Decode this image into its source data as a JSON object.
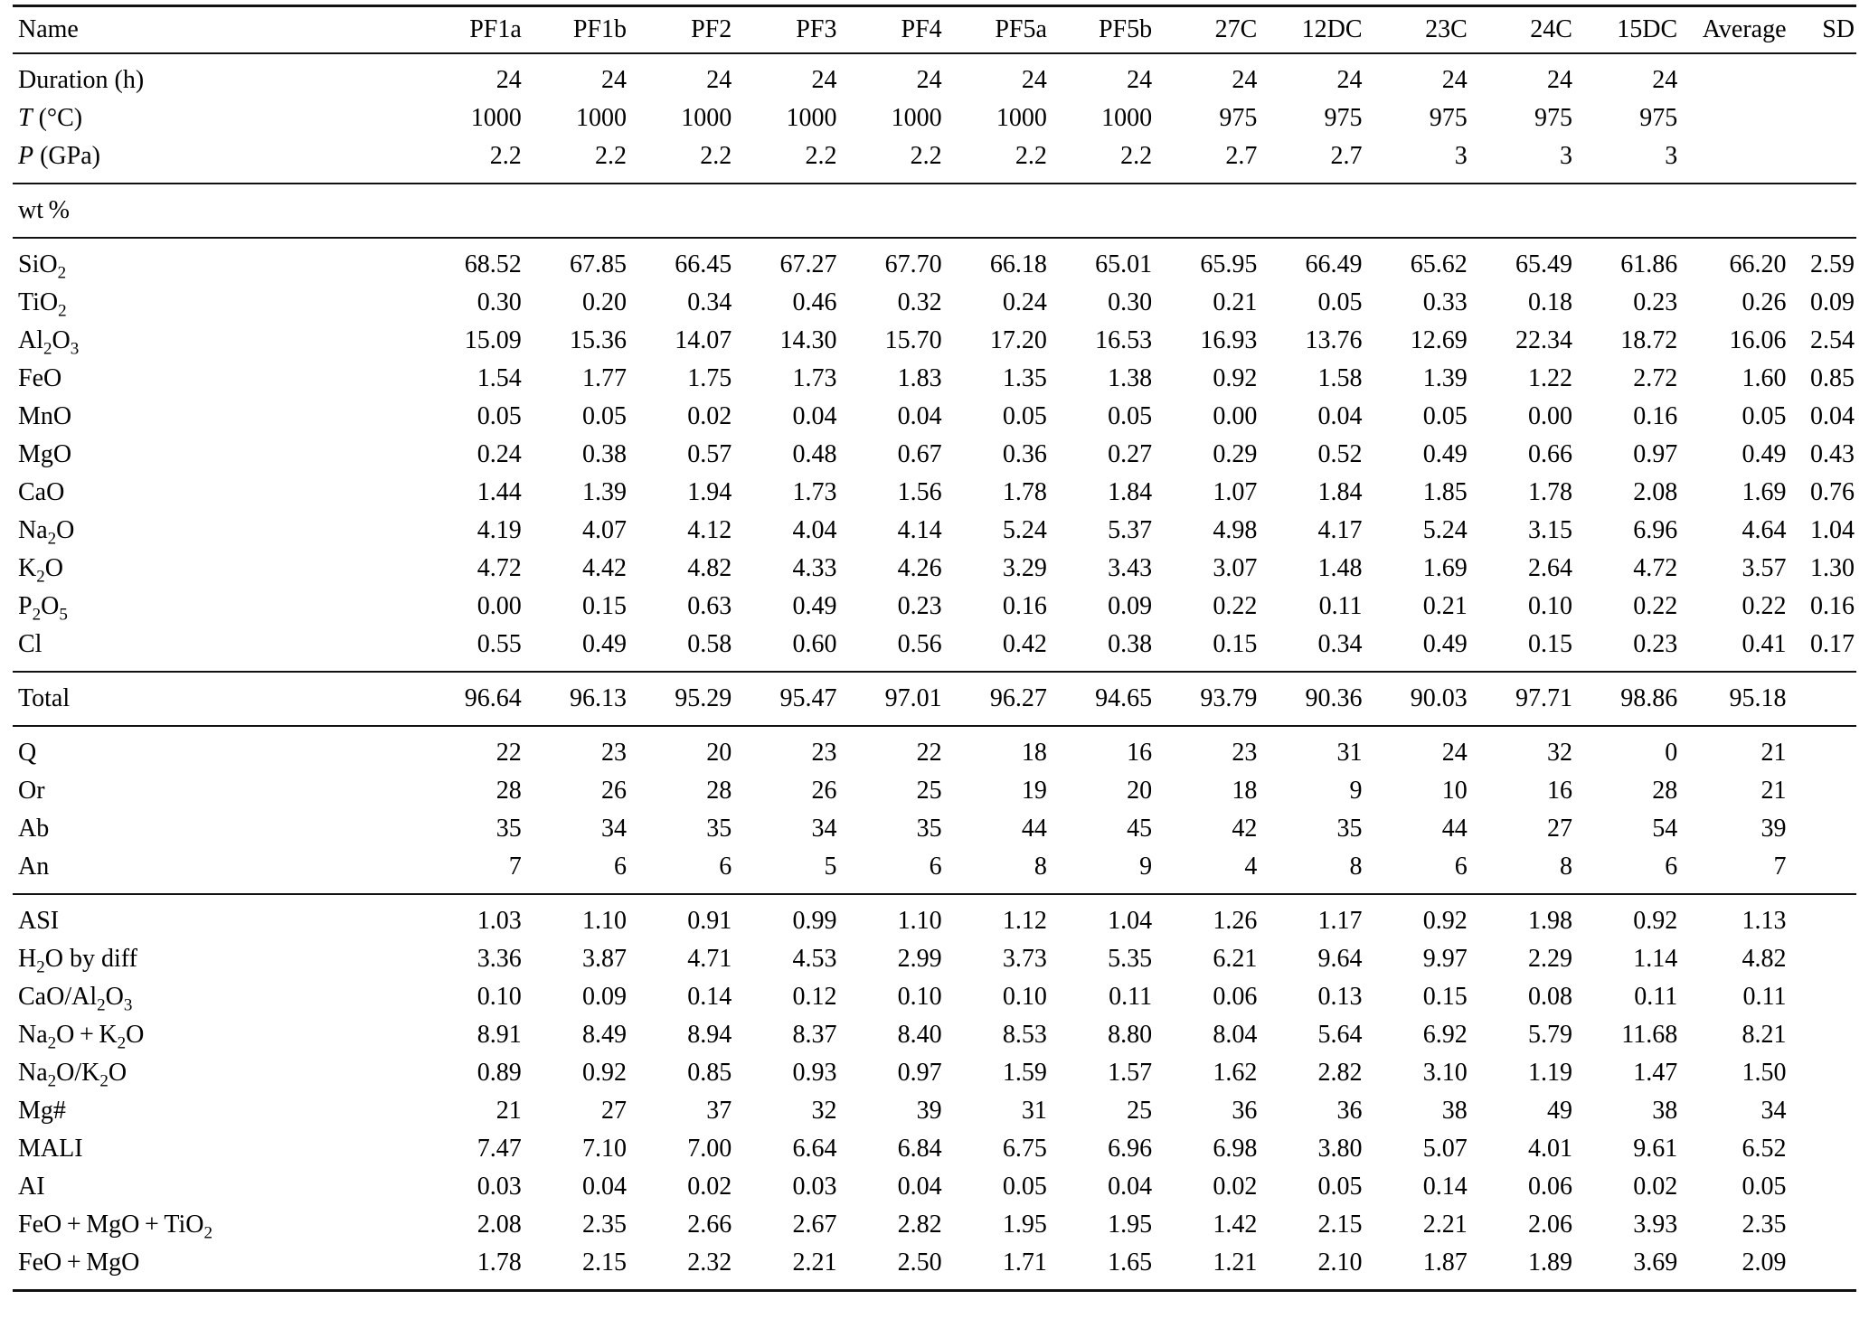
{
  "table": {
    "columns": [
      "Name",
      "PF1a",
      "PF1b",
      "PF2",
      "PF3",
      "PF4",
      "PF5a",
      "PF5b",
      "27C",
      "12DC",
      "23C",
      "24C",
      "15DC",
      "Average",
      "SD"
    ],
    "sections": [
      {
        "id": "run-conditions",
        "rows": [
          {
            "id": "duration",
            "label": [
              {
                "t": "Duration (h)"
              }
            ],
            "values": [
              "24",
              "24",
              "24",
              "24",
              "24",
              "24",
              "24",
              "24",
              "24",
              "24",
              "24",
              "24",
              "",
              ""
            ]
          },
          {
            "id": "temperature",
            "label": [
              {
                "t": "T",
                "i": true
              },
              {
                "t": " (°C)"
              }
            ],
            "values": [
              "1000",
              "1000",
              "1000",
              "1000",
              "1000",
              "1000",
              "1000",
              "975",
              "975",
              "975",
              "975",
              "975",
              "",
              ""
            ]
          },
          {
            "id": "pressure",
            "label": [
              {
                "t": "P",
                "i": true
              },
              {
                "t": " (GPa)"
              }
            ],
            "values": [
              "2.2",
              "2.2",
              "2.2",
              "2.2",
              "2.2",
              "2.2",
              "2.2",
              "2.7",
              "2.7",
              "3",
              "3",
              "3",
              "",
              ""
            ]
          }
        ]
      },
      {
        "id": "wt-percent-header",
        "rows": [
          {
            "id": "wt-percent",
            "label": [
              {
                "t": "wt %"
              }
            ],
            "values": [
              "",
              "",
              "",
              "",
              "",
              "",
              "",
              "",
              "",
              "",
              "",
              "",
              "",
              ""
            ]
          }
        ]
      },
      {
        "id": "major-oxides",
        "rows": [
          {
            "id": "sio2",
            "label": [
              {
                "t": "SiO"
              },
              {
                "t": "2",
                "sub": true
              }
            ],
            "values": [
              "68.52",
              "67.85",
              "66.45",
              "67.27",
              "67.70",
              "66.18",
              "65.01",
              "65.95",
              "66.49",
              "65.62",
              "65.49",
              "61.86",
              "66.20",
              "2.59"
            ]
          },
          {
            "id": "tio2",
            "label": [
              {
                "t": "TiO"
              },
              {
                "t": "2",
                "sub": true
              }
            ],
            "values": [
              "0.30",
              "0.20",
              "0.34",
              "0.46",
              "0.32",
              "0.24",
              "0.30",
              "0.21",
              "0.05",
              "0.33",
              "0.18",
              "0.23",
              "0.26",
              "0.09"
            ]
          },
          {
            "id": "al2o3",
            "label": [
              {
                "t": "Al"
              },
              {
                "t": "2",
                "sub": true
              },
              {
                "t": "O"
              },
              {
                "t": "3",
                "sub": true
              }
            ],
            "values": [
              "15.09",
              "15.36",
              "14.07",
              "14.30",
              "15.70",
              "17.20",
              "16.53",
              "16.93",
              "13.76",
              "12.69",
              "22.34",
              "18.72",
              "16.06",
              "2.54"
            ]
          },
          {
            "id": "feo",
            "label": [
              {
                "t": "FeO"
              }
            ],
            "values": [
              "1.54",
              "1.77",
              "1.75",
              "1.73",
              "1.83",
              "1.35",
              "1.38",
              "0.92",
              "1.58",
              "1.39",
              "1.22",
              "2.72",
              "1.60",
              "0.85"
            ]
          },
          {
            "id": "mno",
            "label": [
              {
                "t": "MnO"
              }
            ],
            "values": [
              "0.05",
              "0.05",
              "0.02",
              "0.04",
              "0.04",
              "0.05",
              "0.05",
              "0.00",
              "0.04",
              "0.05",
              "0.00",
              "0.16",
              "0.05",
              "0.04"
            ]
          },
          {
            "id": "mgo",
            "label": [
              {
                "t": "MgO"
              }
            ],
            "values": [
              "0.24",
              "0.38",
              "0.57",
              "0.48",
              "0.67",
              "0.36",
              "0.27",
              "0.29",
              "0.52",
              "0.49",
              "0.66",
              "0.97",
              "0.49",
              "0.43"
            ]
          },
          {
            "id": "cao",
            "label": [
              {
                "t": "CaO"
              }
            ],
            "values": [
              "1.44",
              "1.39",
              "1.94",
              "1.73",
              "1.56",
              "1.78",
              "1.84",
              "1.07",
              "1.84",
              "1.85",
              "1.78",
              "2.08",
              "1.69",
              "0.76"
            ]
          },
          {
            "id": "na2o",
            "label": [
              {
                "t": "Na"
              },
              {
                "t": "2",
                "sub": true
              },
              {
                "t": "O"
              }
            ],
            "values": [
              "4.19",
              "4.07",
              "4.12",
              "4.04",
              "4.14",
              "5.24",
              "5.37",
              "4.98",
              "4.17",
              "5.24",
              "3.15",
              "6.96",
              "4.64",
              "1.04"
            ]
          },
          {
            "id": "k2o",
            "label": [
              {
                "t": "K"
              },
              {
                "t": "2",
                "sub": true
              },
              {
                "t": "O"
              }
            ],
            "values": [
              "4.72",
              "4.42",
              "4.82",
              "4.33",
              "4.26",
              "3.29",
              "3.43",
              "3.07",
              "1.48",
              "1.69",
              "2.64",
              "4.72",
              "3.57",
              "1.30"
            ]
          },
          {
            "id": "p2o5",
            "label": [
              {
                "t": "P"
              },
              {
                "t": "2",
                "sub": true
              },
              {
                "t": "O"
              },
              {
                "t": "5",
                "sub": true
              }
            ],
            "values": [
              "0.00",
              "0.15",
              "0.63",
              "0.49",
              "0.23",
              "0.16",
              "0.09",
              "0.22",
              "0.11",
              "0.21",
              "0.10",
              "0.22",
              "0.22",
              "0.16"
            ]
          },
          {
            "id": "cl",
            "label": [
              {
                "t": "Cl"
              }
            ],
            "values": [
              "0.55",
              "0.49",
              "0.58",
              "0.60",
              "0.56",
              "0.42",
              "0.38",
              "0.15",
              "0.34",
              "0.49",
              "0.15",
              "0.23",
              "0.41",
              "0.17"
            ]
          }
        ]
      },
      {
        "id": "total",
        "rows": [
          {
            "id": "total",
            "label": [
              {
                "t": "Total"
              }
            ],
            "values": [
              "96.64",
              "96.13",
              "95.29",
              "95.47",
              "97.01",
              "96.27",
              "94.65",
              "93.79",
              "90.36",
              "90.03",
              "97.71",
              "98.86",
              "95.18",
              ""
            ]
          }
        ]
      },
      {
        "id": "cipw-norm",
        "rows": [
          {
            "id": "q",
            "label": [
              {
                "t": "Q"
              }
            ],
            "values": [
              "22",
              "23",
              "20",
              "23",
              "22",
              "18",
              "16",
              "23",
              "31",
              "24",
              "32",
              "0",
              "21",
              ""
            ]
          },
          {
            "id": "or",
            "label": [
              {
                "t": "Or"
              }
            ],
            "values": [
              "28",
              "26",
              "28",
              "26",
              "25",
              "19",
              "20",
              "18",
              "9",
              "10",
              "16",
              "28",
              "21",
              ""
            ]
          },
          {
            "id": "ab",
            "label": [
              {
                "t": "Ab"
              }
            ],
            "values": [
              "35",
              "34",
              "35",
              "34",
              "35",
              "44",
              "45",
              "42",
              "35",
              "44",
              "27",
              "54",
              "39",
              ""
            ]
          },
          {
            "id": "an",
            "label": [
              {
                "t": "An"
              }
            ],
            "values": [
              "7",
              "6",
              "6",
              "5",
              "6",
              "8",
              "9",
              "4",
              "8",
              "6",
              "8",
              "6",
              "7",
              ""
            ]
          }
        ]
      },
      {
        "id": "derived-indices",
        "rows": [
          {
            "id": "asi",
            "label": [
              {
                "t": "ASI"
              }
            ],
            "values": [
              "1.03",
              "1.10",
              "0.91",
              "0.99",
              "1.10",
              "1.12",
              "1.04",
              "1.26",
              "1.17",
              "0.92",
              "1.98",
              "0.92",
              "1.13",
              ""
            ]
          },
          {
            "id": "h2o-by-diff",
            "label": [
              {
                "t": "H"
              },
              {
                "t": "2",
                "sub": true
              },
              {
                "t": "O by diff"
              }
            ],
            "values": [
              "3.36",
              "3.87",
              "4.71",
              "4.53",
              "2.99",
              "3.73",
              "5.35",
              "6.21",
              "9.64",
              "9.97",
              "2.29",
              "1.14",
              "4.82",
              ""
            ]
          },
          {
            "id": "cao-al2o3",
            "label": [
              {
                "t": "CaO/Al"
              },
              {
                "t": "2",
                "sub": true
              },
              {
                "t": "O"
              },
              {
                "t": "3",
                "sub": true
              }
            ],
            "values": [
              "0.10",
              "0.09",
              "0.14",
              "0.12",
              "0.10",
              "0.10",
              "0.11",
              "0.06",
              "0.13",
              "0.15",
              "0.08",
              "0.11",
              "0.11",
              ""
            ]
          },
          {
            "id": "na2o-plus-k2o",
            "label": [
              {
                "t": "Na"
              },
              {
                "t": "2",
                "sub": true
              },
              {
                "t": "O + K"
              },
              {
                "t": "2",
                "sub": true
              },
              {
                "t": "O"
              }
            ],
            "values": [
              "8.91",
              "8.49",
              "8.94",
              "8.37",
              "8.40",
              "8.53",
              "8.80",
              "8.04",
              "5.64",
              "6.92",
              "5.79",
              "11.68",
              "8.21",
              ""
            ]
          },
          {
            "id": "na2o-k2o-ratio",
            "label": [
              {
                "t": "Na"
              },
              {
                "t": "2",
                "sub": true
              },
              {
                "t": "O/K"
              },
              {
                "t": "2",
                "sub": true
              },
              {
                "t": "O"
              }
            ],
            "values": [
              "0.89",
              "0.92",
              "0.85",
              "0.93",
              "0.97",
              "1.59",
              "1.57",
              "1.62",
              "2.82",
              "3.10",
              "1.19",
              "1.47",
              "1.50",
              ""
            ]
          },
          {
            "id": "mg-number",
            "label": [
              {
                "t": "Mg#"
              }
            ],
            "values": [
              "21",
              "27",
              "37",
              "32",
              "39",
              "31",
              "25",
              "36",
              "36",
              "38",
              "49",
              "38",
              "34",
              ""
            ]
          },
          {
            "id": "mali",
            "label": [
              {
                "t": "MALI"
              }
            ],
            "values": [
              "7.47",
              "7.10",
              "7.00",
              "6.64",
              "6.84",
              "6.75",
              "6.96",
              "6.98",
              "3.80",
              "5.07",
              "4.01",
              "9.61",
              "6.52",
              ""
            ]
          },
          {
            "id": "ai",
            "label": [
              {
                "t": "AI"
              }
            ],
            "values": [
              "0.03",
              "0.04",
              "0.02",
              "0.03",
              "0.04",
              "0.05",
              "0.04",
              "0.02",
              "0.05",
              "0.14",
              "0.06",
              "0.02",
              "0.05",
              ""
            ]
          },
          {
            "id": "feo-mgo-tio2",
            "label": [
              {
                "t": "FeO + MgO + TiO"
              },
              {
                "t": "2",
                "sub": true
              }
            ],
            "values": [
              "2.08",
              "2.35",
              "2.66",
              "2.67",
              "2.82",
              "1.95",
              "1.95",
              "1.42",
              "2.15",
              "2.21",
              "2.06",
              "3.93",
              "2.35",
              ""
            ]
          },
          {
            "id": "feo-mgo",
            "label": [
              {
                "t": "FeO + MgO"
              }
            ],
            "values": [
              "1.78",
              "2.15",
              "2.32",
              "2.21",
              "2.50",
              "1.71",
              "1.65",
              "1.21",
              "2.10",
              "1.87",
              "1.89",
              "3.69",
              "2.09",
              ""
            ]
          }
        ]
      }
    ]
  }
}
